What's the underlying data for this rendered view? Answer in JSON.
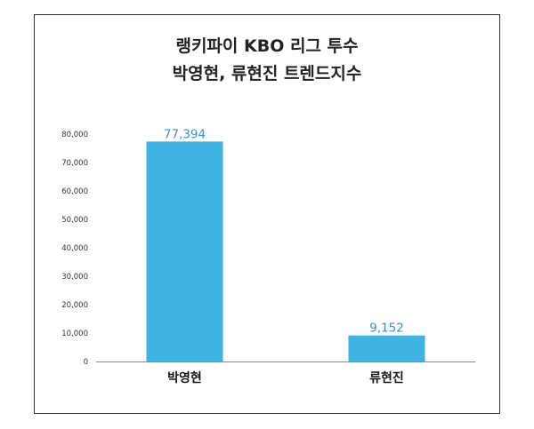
{
  "chart_data": {
    "type": "bar",
    "title_lines": [
      "랭키파이 KBO 리그 투수",
      "박영현, 류현진 트렌드지수"
    ],
    "categories": [
      "박영현",
      "류현진"
    ],
    "values": [
      77394,
      9152
    ],
    "value_labels": [
      "77,394",
      "9,152"
    ],
    "yticks": [
      0,
      10000,
      20000,
      30000,
      40000,
      50000,
      60000,
      70000,
      80000
    ],
    "ytick_labels": [
      "0",
      "10,000",
      "20,000",
      "30,000",
      "40,000",
      "50,000",
      "60,000",
      "70,000",
      "80,000"
    ],
    "ylim": [
      0,
      80000
    ],
    "bar_color": "#41b3e3",
    "grid": false,
    "legend": "none"
  }
}
